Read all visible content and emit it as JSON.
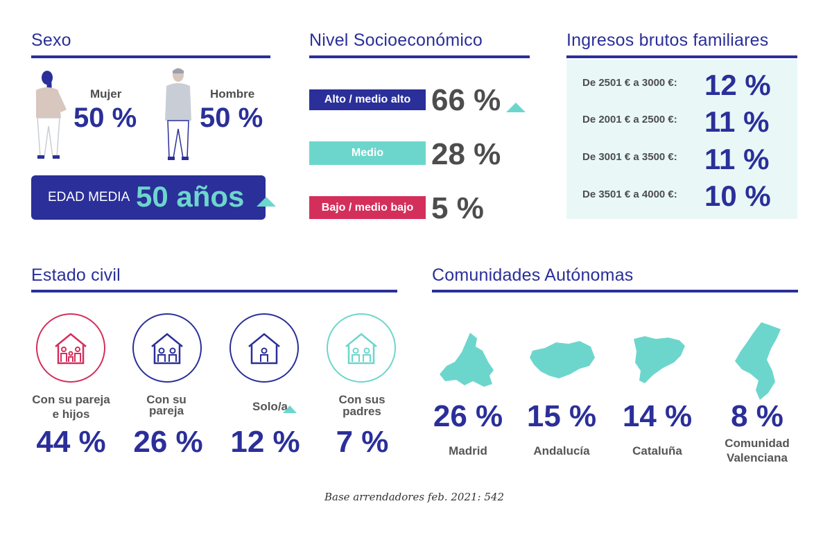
{
  "sexo": {
    "title": "Sexo",
    "mujer_label": "Mujer",
    "mujer_value": "50 %",
    "hombre_label": "Hombre",
    "hombre_value": "50 %",
    "edad_label": "EDAD MEDIA",
    "edad_value": "50 años"
  },
  "nse": {
    "title": "Nivel Socioeconómico",
    "rows": [
      {
        "label": "Alto / medio alto",
        "value": "66 %",
        "color": "#2a2f99"
      },
      {
        "label": "Medio",
        "value": "28 %",
        "color": "#6dd6cc"
      },
      {
        "label": "Bajo / medio bajo",
        "value": "5 %",
        "color": "#d42f5b"
      }
    ]
  },
  "ingresos": {
    "title": "Ingresos brutos familiares",
    "rows": [
      {
        "label": "De 2501 € a 3000 €:",
        "value": "12 %"
      },
      {
        "label": "De 2001 € a 2500 €:",
        "value": "11 %"
      },
      {
        "label": "De 3001 € a 3500 €:",
        "value": "11 %"
      },
      {
        "label": "De 3501 € a 4000 €:",
        "value": "10 %"
      }
    ]
  },
  "estado_civil": {
    "title": "Estado civil",
    "items": [
      {
        "label_line1": "Con su pareja",
        "label_line2": "e hijos",
        "value": "44 %",
        "color": "#d42f5b",
        "icon": "family-house-icon"
      },
      {
        "label_line1": "Con su",
        "label_line2": "pareja",
        "value": "26 %",
        "color": "#2a2f99",
        "icon": "couple-house-icon"
      },
      {
        "label_line1": "Solo/a",
        "label_line2": "",
        "value": "12 %",
        "color": "#2a2f99",
        "icon": "single-house-icon"
      },
      {
        "label_line1": "Con sus",
        "label_line2": "padres",
        "value": "7 %",
        "color": "#6dd6cc",
        "icon": "parents-house-icon"
      }
    ]
  },
  "comunidades": {
    "title": "Comunidades Autónomas",
    "items": [
      {
        "value": "26 %",
        "label_line1": "Madrid",
        "label_line2": "",
        "icon": "madrid-map-icon"
      },
      {
        "value": "15 %",
        "label_line1": "Andalucía",
        "label_line2": "",
        "icon": "andalucia-map-icon"
      },
      {
        "value": "14 %",
        "label_line1": "Cataluña",
        "label_line2": "",
        "icon": "cataluna-map-icon"
      },
      {
        "value": "8 %",
        "label_line1": "Comunidad",
        "label_line2": "Valenciana",
        "icon": "valencia-map-icon"
      }
    ]
  },
  "footer": "Base arrendadores feb. 2021: 542",
  "colors": {
    "navy": "#2a2f99",
    "teal": "#6dd6cc",
    "pink": "#d42f5b",
    "panel": "#e9f7f7"
  }
}
